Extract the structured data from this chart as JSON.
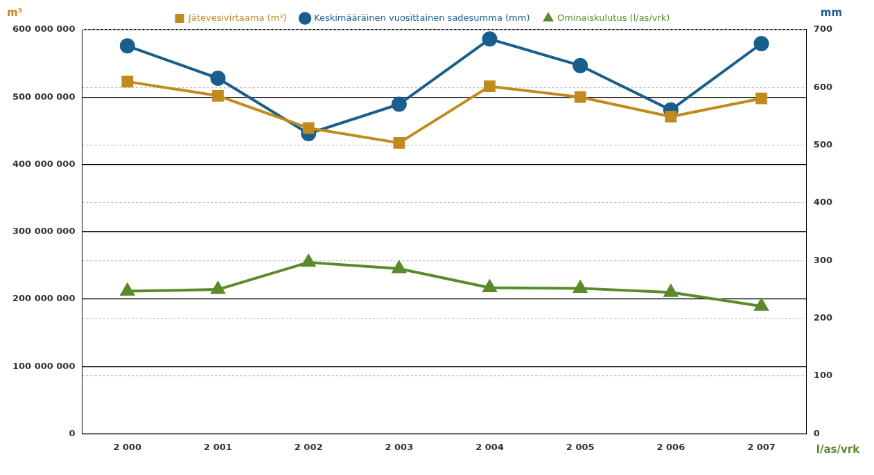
{
  "chart_data": {
    "type": "line",
    "ylabel": "m³",
    "y2label": "mm",
    "annotations": [
      "l/as/vrk"
    ],
    "categories": [
      "2 000",
      "2 001",
      "2 002",
      "2 003",
      "2 004",
      "2 005",
      "2 006",
      "2 007"
    ],
    "series": [
      {
        "name": "Jätevesivirtaama (m³)",
        "color": "#c08a1e",
        "marker": "square",
        "values": [
          523000000,
          502000000,
          454000000,
          432000000,
          516000000,
          500000000,
          471000000,
          498000000
        ]
      },
      {
        "name": "Keskimääräinen vuosittainen sadesumma (mm)",
        "color": "#1a5e8c",
        "marker": "circle",
        "axis": "y2",
        "values": [
          672,
          616,
          520,
          571,
          684,
          638,
          561,
          676
        ]
      },
      {
        "name": "Ominaiskulutus (l/as/vrk)",
        "color": "#5a8a2a",
        "marker": "triangle",
        "axis": "y2",
        "values": [
          247,
          250,
          297,
          286,
          253,
          252,
          245,
          221
        ]
      }
    ],
    "ylim": [
      0,
      600000000
    ],
    "yticks": [
      {
        "value": 0,
        "label": "0"
      },
      {
        "value": 100000000,
        "label": "100 000 000"
      },
      {
        "value": 200000000,
        "label": "200 000 000"
      },
      {
        "value": 300000000,
        "label": "300 000 000"
      },
      {
        "value": 400000000,
        "label": "400 000 000"
      },
      {
        "value": 500000000,
        "label": "500 000 000"
      },
      {
        "value": 600000000,
        "label": "600 000 000"
      }
    ],
    "y2lim": [
      0,
      700
    ],
    "y2ticks": [
      0,
      100,
      200,
      300,
      400,
      500,
      600,
      700
    ],
    "grid": true,
    "legend": "top",
    "line_style": "solid"
  }
}
